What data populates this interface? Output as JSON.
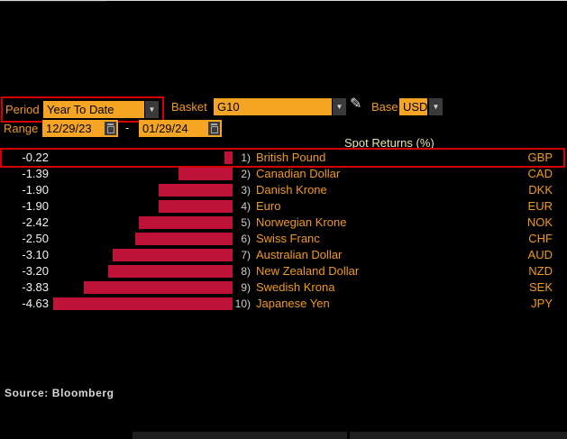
{
  "toolbar": {
    "period_label": "Period",
    "period_value": "Year To Date",
    "basket_label": "Basket",
    "basket_value": "G10",
    "base_label": "Base",
    "base_value": "USD",
    "range_label": "Range",
    "range_start": "12/29/23",
    "range_separator": "-",
    "range_end": "01/29/24"
  },
  "icons": {
    "dropdown_glyph": "▼",
    "pencil_glyph": "✎"
  },
  "colors": {
    "accent_orange": "#f09a1c",
    "field_orange": "#f6a424",
    "bar_red": "#be1238",
    "highlight_border_red": "#d40000",
    "title_yellow": "#e9e5a9",
    "value_text": "#f2f2f2",
    "rank_text": "#cfcfcf"
  },
  "chart_data": {
    "type": "bar",
    "title": "Spot Returns (%)",
    "orientation": "horizontal",
    "value_unit": "%",
    "xlim": [
      -4.63,
      0
    ],
    "legend": "none",
    "rows": [
      {
        "rank": "1)",
        "label": "British Pound",
        "code": "GBP",
        "value": -0.22,
        "value_label": "-0.22",
        "highlighted": true
      },
      {
        "rank": "2)",
        "label": "Canadian Dollar",
        "code": "CAD",
        "value": -1.39,
        "value_label": "-1.39",
        "highlighted": false
      },
      {
        "rank": "3)",
        "label": "Danish Krone",
        "code": "DKK",
        "value": -1.9,
        "value_label": "-1.90",
        "highlighted": false
      },
      {
        "rank": "4)",
        "label": "Euro",
        "code": "EUR",
        "value": -1.9,
        "value_label": "-1.90",
        "highlighted": false
      },
      {
        "rank": "5)",
        "label": "Norwegian Krone",
        "code": "NOK",
        "value": -2.42,
        "value_label": "-2.42",
        "highlighted": false
      },
      {
        "rank": "6)",
        "label": "Swiss Franc",
        "code": "CHF",
        "value": -2.5,
        "value_label": "-2.50",
        "highlighted": false
      },
      {
        "rank": "7)",
        "label": "Australian Dollar",
        "code": "AUD",
        "value": -3.1,
        "value_label": "-3.10",
        "highlighted": false
      },
      {
        "rank": "8)",
        "label": "New Zealand Dollar",
        "code": "NZD",
        "value": -3.2,
        "value_label": "-3.20",
        "highlighted": false
      },
      {
        "rank": "9)",
        "label": "Swedish Krona",
        "code": "SEK",
        "value": -3.83,
        "value_label": "-3.83",
        "highlighted": false
      },
      {
        "rank": "10)",
        "label": "Japanese Yen",
        "code": "JPY",
        "value": -4.63,
        "value_label": "-4.63",
        "highlighted": false
      }
    ]
  },
  "footer": {
    "source_text": "Source: Bloomberg"
  }
}
